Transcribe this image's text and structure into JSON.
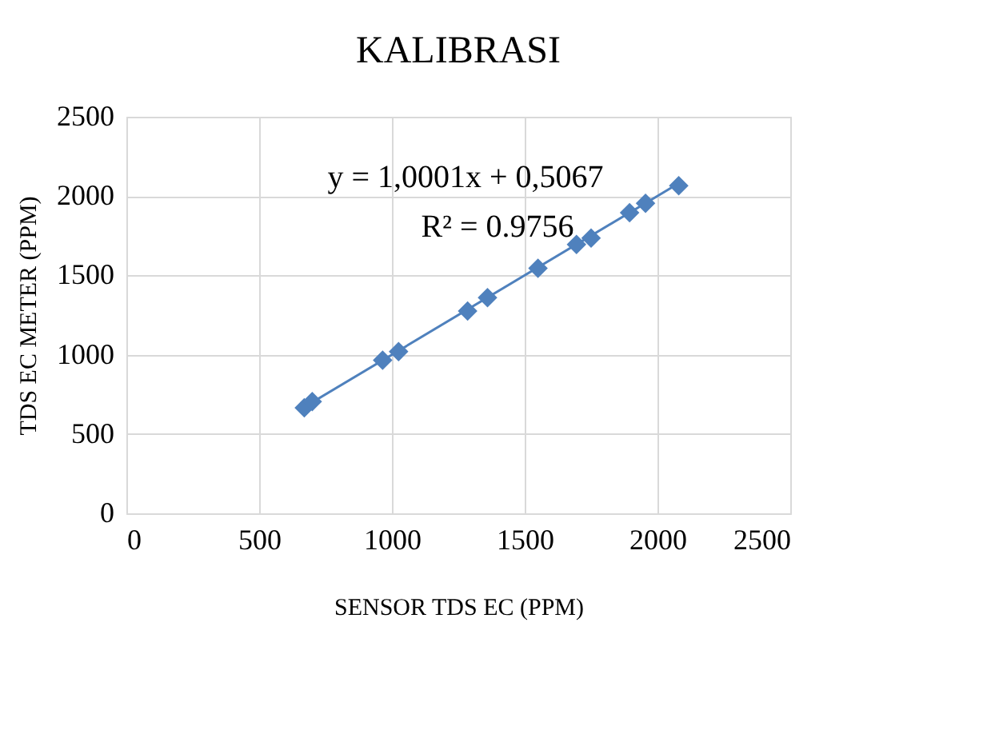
{
  "chart_data": {
    "type": "scatter",
    "title": "KALIBRASI",
    "xlabel": "SENSOR TDS EC (PPM)",
    "ylabel": "TDS EC METER (PPM)",
    "x": [
      670,
      700,
      965,
      1025,
      1285,
      1360,
      1550,
      1695,
      1750,
      1895,
      1955,
      2080
    ],
    "series": [
      {
        "color": "#4f81bd",
        "values": [
          665,
          705,
          965,
          1020,
          1275,
          1360,
          1545,
          1695,
          1735,
          1895,
          1955,
          2065
        ],
        "marker": "diamond"
      },
      {
        "type": "line",
        "color": "#4f81bd",
        "x": [
          670,
          2080
        ],
        "values": [
          670,
          2080
        ],
        "marker": "none"
      }
    ],
    "annotations": [
      "y = 1,0001x + 0,5067",
      "R² = 0.9756"
    ],
    "xlim": [
      0,
      2500
    ],
    "ylim": [
      0,
      2500
    ],
    "xticks": [
      0,
      500,
      1000,
      1500,
      2000,
      2500
    ],
    "yticks": [
      0,
      500,
      1000,
      1500,
      2000,
      2500
    ],
    "grid": true
  }
}
